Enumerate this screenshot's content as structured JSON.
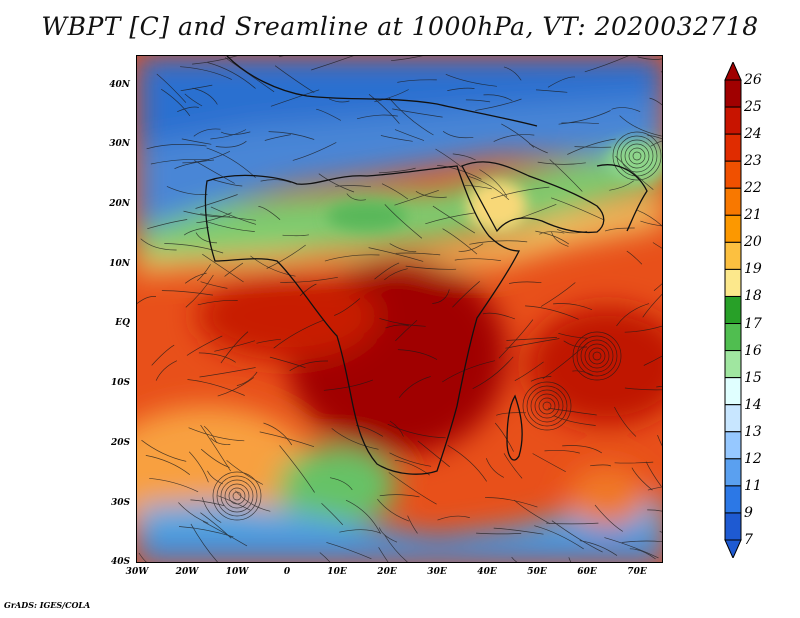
{
  "title": "WBPT [C] and Sreamline at 1000hPa, VT: 2020032718",
  "footer": "GrADS: IGES/COLA",
  "map": {
    "lat_labels": [
      "40N",
      "30N",
      "20N",
      "10N",
      "EQ",
      "10S",
      "20S",
      "30S",
      "40S"
    ],
    "lon_labels": [
      "30W",
      "20W",
      "10W",
      "0",
      "10E",
      "20E",
      "30E",
      "40E",
      "50E",
      "60E",
      "70E"
    ],
    "lat_range": [
      -40,
      45
    ],
    "lon_range": [
      -30,
      75
    ]
  },
  "colorbar": {
    "labels": [
      "26",
      "25",
      "24",
      "23",
      "22",
      "21",
      "20",
      "19",
      "18",
      "17",
      "16",
      "15",
      "14",
      "13",
      "12",
      "11",
      "9",
      "7"
    ],
    "colors": [
      "#a00000",
      "#c81400",
      "#e02c00",
      "#f05000",
      "#f87800",
      "#fc9800",
      "#fcc040",
      "#fce88c",
      "#28a028",
      "#50be50",
      "#a0e6a0",
      "#e0ffff",
      "#c8e6ff",
      "#96c8ff",
      "#5aa0f0",
      "#2c78e6",
      "#1e5ad2"
    ]
  }
}
